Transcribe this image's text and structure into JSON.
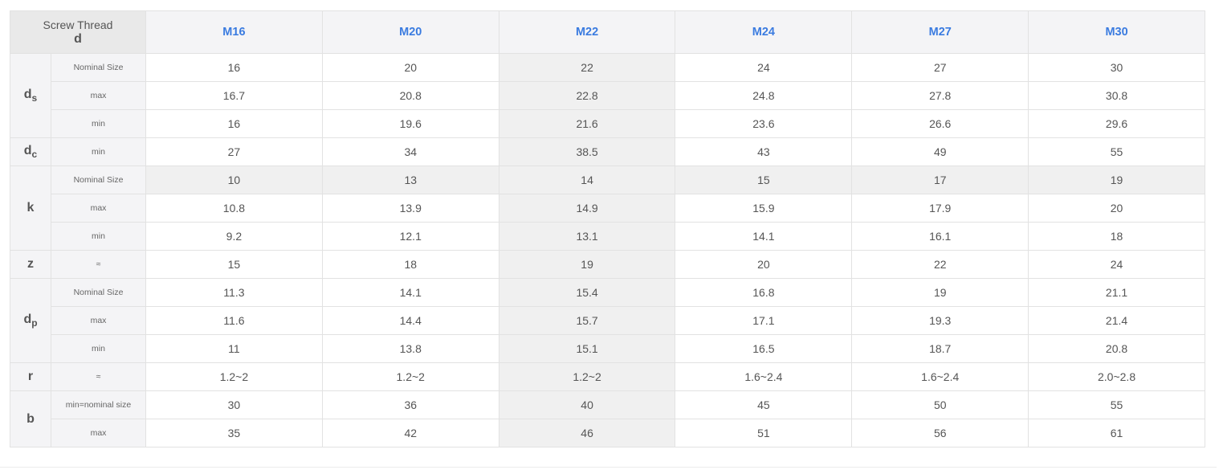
{
  "header": {
    "corner_title": "Screw Thread",
    "corner_symbol": "d",
    "sizes": [
      "M16",
      "M20",
      "M22",
      "M24",
      "M27",
      "M30"
    ]
  },
  "groups": [
    {
      "symbol": "d",
      "subscript": "s",
      "rows": [
        {
          "label": "Nominal Size",
          "values": [
            "16",
            "20",
            "22",
            "24",
            "27",
            "30"
          ]
        },
        {
          "label": "max",
          "values": [
            "16.7",
            "20.8",
            "22.8",
            "24.8",
            "27.8",
            "30.8"
          ]
        },
        {
          "label": "min",
          "values": [
            "16",
            "19.6",
            "21.6",
            "23.6",
            "26.6",
            "29.6"
          ]
        }
      ]
    },
    {
      "symbol": "d",
      "subscript": "c",
      "rows": [
        {
          "label": "min",
          "values": [
            "27",
            "34",
            "38.5",
            "43",
            "49",
            "55"
          ]
        }
      ]
    },
    {
      "symbol": "k",
      "subscript": "",
      "rows": [
        {
          "label": "Nominal Size",
          "values": [
            "10",
            "13",
            "14",
            "15",
            "17",
            "19"
          ]
        },
        {
          "label": "max",
          "values": [
            "10.8",
            "13.9",
            "14.9",
            "15.9",
            "17.9",
            "20"
          ]
        },
        {
          "label": "min",
          "values": [
            "9.2",
            "12.1",
            "13.1",
            "14.1",
            "16.1",
            "18"
          ]
        }
      ]
    },
    {
      "symbol": "z",
      "subscript": "",
      "rows": [
        {
          "label": "≈",
          "values": [
            "15",
            "18",
            "19",
            "20",
            "22",
            "24"
          ]
        }
      ]
    },
    {
      "symbol": "d",
      "subscript": "p",
      "rows": [
        {
          "label": "Nominal Size",
          "values": [
            "11.3",
            "14.1",
            "15.4",
            "16.8",
            "19",
            "21.1"
          ]
        },
        {
          "label": "max",
          "values": [
            "11.6",
            "14.4",
            "15.7",
            "17.1",
            "19.3",
            "21.4"
          ]
        },
        {
          "label": "min",
          "values": [
            "11",
            "13.8",
            "15.1",
            "16.5",
            "18.7",
            "20.8"
          ]
        }
      ]
    },
    {
      "symbol": "r",
      "subscript": "",
      "rows": [
        {
          "label": "≈",
          "values": [
            "1.2~2",
            "1.2~2",
            "1.2~2",
            "1.6~2.4",
            "1.6~2.4",
            "2.0~2.8"
          ]
        }
      ]
    },
    {
      "symbol": "b",
      "subscript": "",
      "rows": [
        {
          "label": "min=nominal size",
          "values": [
            "30",
            "36",
            "40",
            "45",
            "50",
            "55"
          ]
        },
        {
          "label": "max",
          "values": [
            "35",
            "42",
            "46",
            "51",
            "56",
            "61"
          ]
        }
      ]
    }
  ],
  "highlight": {
    "column_index": 2,
    "group_index": 2,
    "row_index": 0
  }
}
